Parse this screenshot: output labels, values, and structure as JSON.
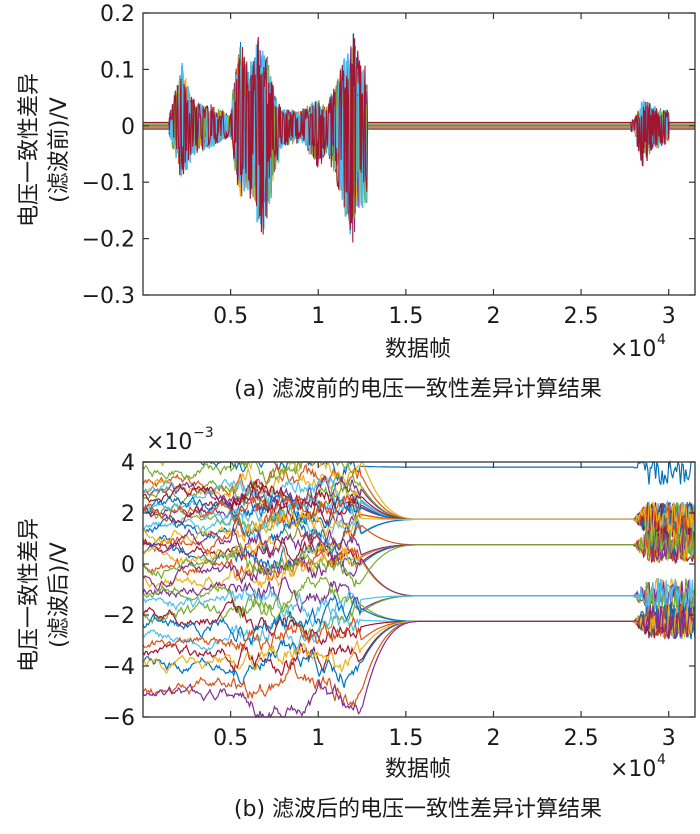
{
  "chart_data": [
    {
      "type": "line",
      "caption": "(a) 滤波前的电压一致性差异计算结果",
      "xlabel": "数据帧",
      "ylabel": "电压一致性差异",
      "ylabel2": "(滤波前)/V",
      "x_multiplier": "×10^4",
      "ylim": [
        -0.3,
        0.2
      ],
      "xlim": [
        0,
        3.15
      ],
      "xticks": [
        "0.5",
        "1",
        "1.5",
        "2",
        "2.5",
        "3"
      ],
      "yticks": [
        "0.2",
        "0.1",
        "0",
        "−0.1",
        "−0.2",
        "−0.3"
      ],
      "grid": false,
      "envelope": {
        "x": [
          0.15,
          0.22,
          0.3,
          0.4,
          0.5,
          0.55,
          0.6,
          0.65,
          0.7,
          0.75,
          0.8,
          0.9,
          1.0,
          1.05,
          1.1,
          1.2,
          1.25,
          2.8,
          2.85,
          2.9,
          3.0
        ],
        "upper": [
          0.02,
          0.12,
          0.04,
          0.04,
          0.02,
          0.19,
          0.1,
          0.16,
          0.15,
          0.06,
          0.03,
          0.03,
          0.05,
          0.04,
          0.08,
          0.17,
          0.11,
          0.01,
          0.05,
          0.04,
          0.03
        ],
        "lower": [
          -0.02,
          -0.1,
          -0.05,
          -0.04,
          -0.02,
          -0.15,
          -0.12,
          -0.18,
          -0.2,
          -0.1,
          -0.04,
          -0.03,
          -0.08,
          -0.05,
          -0.1,
          -0.22,
          -0.15,
          -0.01,
          -0.08,
          -0.05,
          -0.03
        ]
      },
      "series_colors": [
        "#0072BD",
        "#D95319",
        "#EDB120",
        "#7E2F8E",
        "#77AC30",
        "#4DBEEE",
        "#A2142F"
      ]
    },
    {
      "type": "line",
      "caption": "(b) 滤波后的电压一致性差异计算结果",
      "xlabel": "数据帧",
      "ylabel": "电压一致性差异",
      "ylabel2": "(滤波后)/V",
      "x_multiplier": "×10^4",
      "y_multiplier": "×10^-3",
      "ylim": [
        -6,
        4
      ],
      "xlim": [
        0,
        3.15
      ],
      "xticks": [
        "0.5",
        "1",
        "1.5",
        "2",
        "2.5",
        "3"
      ],
      "yticks": [
        "4",
        "2",
        "0",
        "−2",
        "−4",
        "−6"
      ],
      "grid": false,
      "plateau_levels": [
        3.8,
        1.75,
        0.75,
        -1.25,
        -2.25
      ],
      "start_values": [
        4.0,
        3.0,
        2.8,
        2.2,
        1.8,
        1.3,
        0.8,
        0.3,
        -0.2,
        -0.8,
        -1.2,
        -1.8,
        -2.6,
        -3.3,
        -4.1,
        -5.2
      ],
      "plateau_start": 1.25,
      "plateau_end": 2.8,
      "series_colors": [
        "#0072BD",
        "#D95319",
        "#EDB120",
        "#7E2F8E",
        "#77AC30",
        "#4DBEEE",
        "#A2142F"
      ]
    }
  ]
}
